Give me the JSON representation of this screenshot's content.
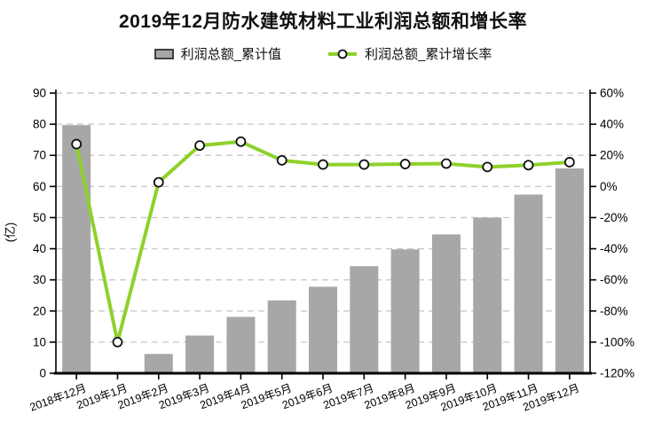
{
  "page": {
    "title": "2019年12月防水建筑材料工业利润总额和增长率",
    "y_axis_unit": "(亿)"
  },
  "legend": {
    "items": [
      {
        "label": "利润总额_累计值",
        "marker": "gray-bar-swatch"
      },
      {
        "label": "利润总额_累计增长率",
        "marker": "green-line-circle-swatch"
      }
    ]
  },
  "colors": {
    "bar": "#a7a7a7",
    "bar_border": "#3f3f3f",
    "line": "#8ed12b",
    "marker_fill": "#ffffff",
    "marker_stroke": "#111111",
    "grid": "#c9c9c9",
    "axis": "#000000",
    "text": "#000000"
  },
  "chart_data": {
    "type": "bar+line",
    "title": "2019年12月防水建筑材料工业利润总额和增长率",
    "categories": [
      "2018年12月",
      "2019年1月",
      "2019年2月",
      "2019年3月",
      "2019年4月",
      "2019年5月",
      "2019年6月",
      "2019年7月",
      "2019年8月",
      "2019年9月",
      "2019年10月",
      "2019年11月",
      "2019年12月"
    ],
    "series": [
      {
        "name": "利润总额_累计值",
        "type": "bar",
        "axis": "left",
        "unit": "亿元",
        "values": [
          79.7,
          null,
          6.2,
          12.1,
          18.1,
          23.4,
          27.8,
          34.4,
          39.8,
          44.6,
          50.0,
          57.4,
          65.8
        ]
      },
      {
        "name": "利润总额_累计增长率",
        "type": "line",
        "axis": "right",
        "unit": "%",
        "values": [
          27.2,
          -100,
          2.7,
          26.3,
          28.8,
          16.8,
          14.1,
          14.1,
          14.4,
          14.7,
          12.5,
          13.7,
          15.6
        ]
      }
    ],
    "left_axis": {
      "label": "(亿)",
      "min": 0,
      "max": 90,
      "step": 10
    },
    "right_axis": {
      "min": -120,
      "max": 60,
      "step": 20,
      "suffix": "%"
    },
    "x_tick_rotation_deg": -20,
    "grid": "horizontal-dashed",
    "legend_position": "top-center"
  }
}
